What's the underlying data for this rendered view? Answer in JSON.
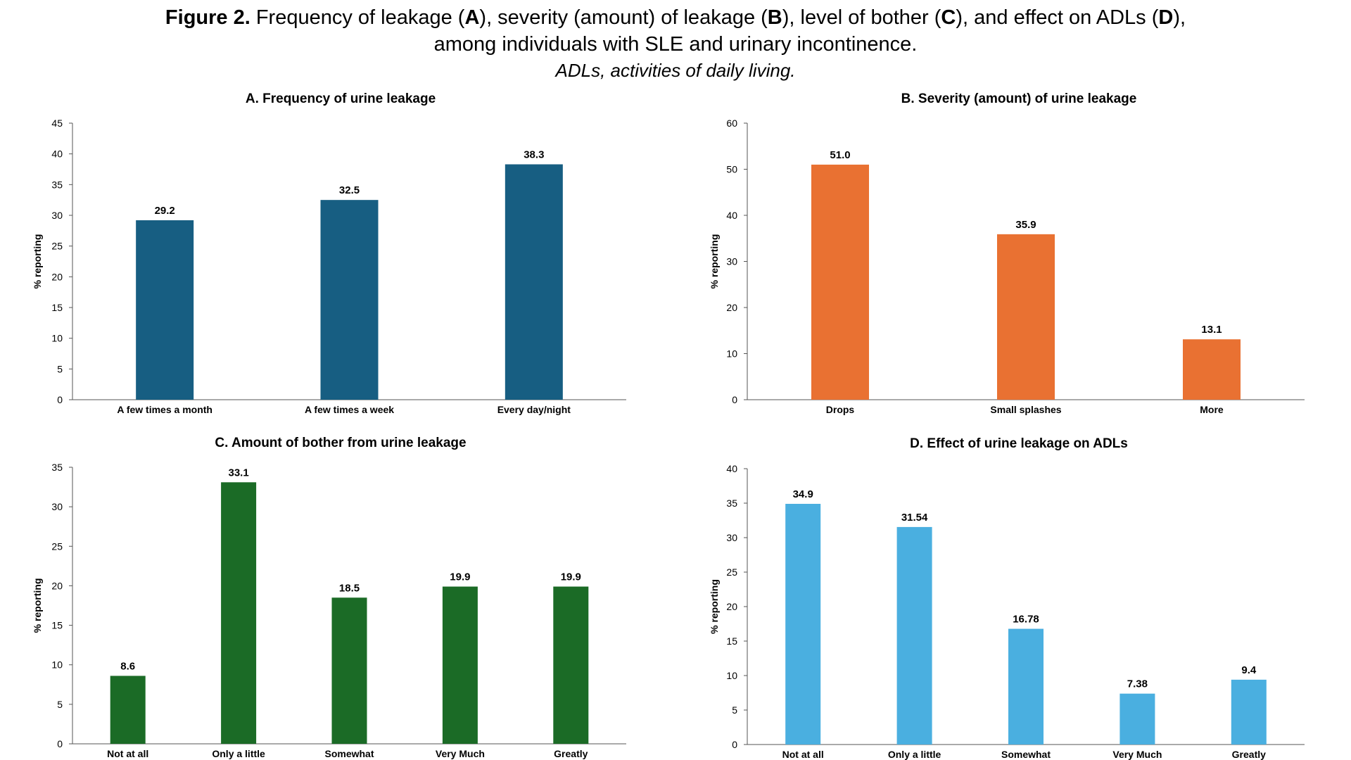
{
  "figure": {
    "label": "Figure 2.",
    "title_parts": [
      {
        "text": " Frequency of leakage (",
        "bold": false
      },
      {
        "text": "A",
        "bold": true
      },
      {
        "text": "), severity (amount) of leakage (",
        "bold": false
      },
      {
        "text": "B",
        "bold": true
      },
      {
        "text": "), level of bother (",
        "bold": false
      },
      {
        "text": "C",
        "bold": true
      },
      {
        "text": "), and effect on ADLs (",
        "bold": false
      },
      {
        "text": "D",
        "bold": true
      },
      {
        "text": "),",
        "bold": false
      }
    ],
    "title_line2": "among individuals with SLE and urinary incontinence.",
    "caption": "ADLs, activities of daily living."
  },
  "chart_data": [
    {
      "id": "A",
      "type": "bar",
      "title": "A. Frequency of urine leakage",
      "xlabel": "",
      "ylabel": "% reporting",
      "ylim": [
        0,
        45
      ],
      "ytick_step": 5,
      "grid": false,
      "color": "#175E82",
      "categories": [
        "A few times a month",
        "A few times a week",
        "Every day/night"
      ],
      "values": [
        29.2,
        32.5,
        38.3
      ],
      "labels": [
        "29.2",
        "32.5",
        "38.3"
      ]
    },
    {
      "id": "B",
      "type": "bar",
      "title": "B. Severity (amount) of urine leakage",
      "xlabel": "",
      "ylabel": "% reporting",
      "ylim": [
        0,
        60
      ],
      "ytick_step": 10,
      "grid": false,
      "color": "#E97132",
      "categories": [
        "Drops",
        "Small splashes",
        "More"
      ],
      "values": [
        51.0,
        35.9,
        13.1
      ],
      "labels": [
        "51.0",
        "35.9",
        "13.1"
      ]
    },
    {
      "id": "C",
      "type": "bar",
      "title": "C. Amount of bother from urine leakage",
      "xlabel": "",
      "ylabel": "% reporting",
      "ylim": [
        0,
        35
      ],
      "ytick_step": 5,
      "grid": false,
      "color": "#1B6B26",
      "categories": [
        "Not at all",
        "Only a little",
        "Somewhat",
        "Very Much",
        "Greatly"
      ],
      "values": [
        8.6,
        33.1,
        18.5,
        19.9,
        19.9
      ],
      "labels": [
        "8.6",
        "33.1",
        "18.5",
        "19.9",
        "19.9"
      ]
    },
    {
      "id": "D",
      "type": "bar",
      "title": "D. Effect of urine leakage on ADLs",
      "xlabel": "",
      "ylabel": "% reporting",
      "ylim": [
        0,
        40
      ],
      "ytick_step": 5,
      "grid": false,
      "color": "#4AAFE0",
      "categories": [
        "Not at all",
        "Only a little",
        "Somewhat",
        "Very Much",
        "Greatly"
      ],
      "values": [
        34.9,
        31.54,
        16.78,
        7.38,
        9.4
      ],
      "labels": [
        "34.9",
        "31.54",
        "16.78",
        "7.38",
        "9.4"
      ]
    }
  ]
}
